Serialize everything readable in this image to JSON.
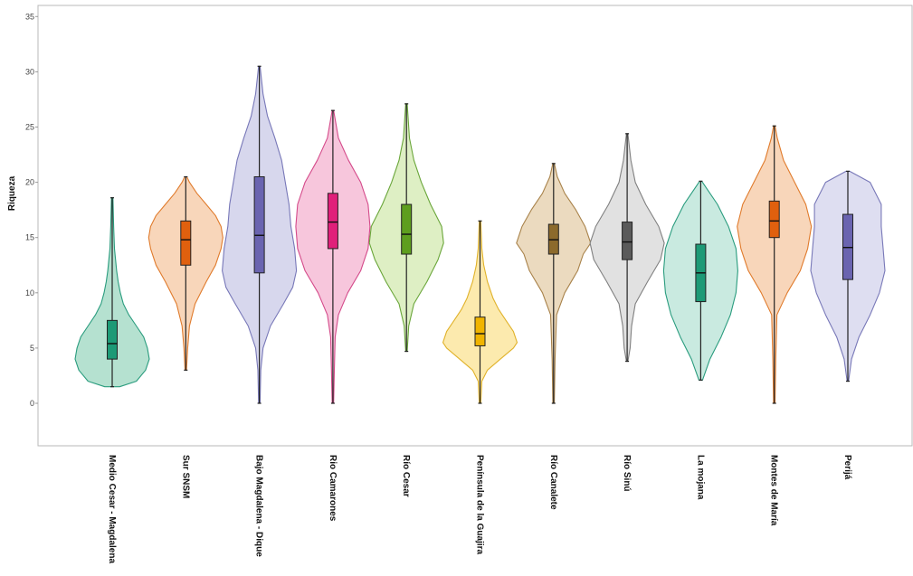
{
  "chart_data": {
    "type": "violin",
    "ylabel": "Riqueza",
    "xlabel": "",
    "ylim": [
      -4,
      36
    ],
    "yticks": [
      0,
      5,
      10,
      15,
      20,
      25,
      30,
      35
    ],
    "grid": false,
    "categories": [
      "Medio Cesar - Magdalena",
      "Sur SNSM",
      "Bajo Magdalena - Dique",
      "Rio Camarones",
      "Río Cesar",
      "Península de la Guajira",
      "Río Canalete",
      "Río Sinú",
      "La mojana",
      "Montes de María",
      "Perijá"
    ],
    "series": [
      {
        "min": 1.5,
        "q1": 4.0,
        "median": 5.4,
        "q3": 7.5,
        "max": 18.6,
        "density": [
          [
            1.5,
            0.2
          ],
          [
            2,
            0.65
          ],
          [
            3,
            0.9
          ],
          [
            4,
            1.0
          ],
          [
            5,
            0.95
          ],
          [
            6,
            0.85
          ],
          [
            7,
            0.65
          ],
          [
            8,
            0.45
          ],
          [
            9,
            0.3
          ],
          [
            10,
            0.22
          ],
          [
            11,
            0.16
          ],
          [
            12,
            0.12
          ],
          [
            13,
            0.09
          ],
          [
            14,
            0.06
          ],
          [
            16,
            0.04
          ],
          [
            18.6,
            0.02
          ]
        ],
        "fill": "#a8dcc8",
        "stroke": "#2a9c7e",
        "box": "#1d9a76"
      },
      {
        "min": 3.0,
        "q1": 12.5,
        "median": 14.8,
        "q3": 16.5,
        "max": 20.5,
        "density": [
          [
            3,
            0.02
          ],
          [
            5,
            0.05
          ],
          [
            7,
            0.1
          ],
          [
            9,
            0.25
          ],
          [
            11,
            0.55
          ],
          [
            12.5,
            0.8
          ],
          [
            14,
            0.95
          ],
          [
            15,
            1.0
          ],
          [
            16,
            0.95
          ],
          [
            17,
            0.8
          ],
          [
            18,
            0.55
          ],
          [
            19,
            0.3
          ],
          [
            20,
            0.1
          ],
          [
            20.5,
            0.03
          ]
        ],
        "fill": "#f7cfae",
        "stroke": "#e07b2c",
        "box": "#e0600e"
      },
      {
        "min": 0.0,
        "q1": 11.8,
        "median": 15.2,
        "q3": 20.5,
        "max": 30.5,
        "density": [
          [
            0,
            0.02
          ],
          [
            3,
            0.04
          ],
          [
            5,
            0.1
          ],
          [
            7,
            0.3
          ],
          [
            9,
            0.65
          ],
          [
            10.5,
            0.9
          ],
          [
            12,
            1.0
          ],
          [
            14,
            0.95
          ],
          [
            16,
            0.85
          ],
          [
            18,
            0.8
          ],
          [
            20,
            0.7
          ],
          [
            22,
            0.6
          ],
          [
            24,
            0.42
          ],
          [
            26,
            0.22
          ],
          [
            28,
            0.1
          ],
          [
            30.5,
            0.02
          ]
        ],
        "fill": "#d0d0ea",
        "stroke": "#7878b8",
        "box": "#6a64b0"
      },
      {
        "min": 0.0,
        "q1": 14.0,
        "median": 16.4,
        "q3": 19.0,
        "max": 26.5,
        "density": [
          [
            0,
            0.02
          ],
          [
            3,
            0.04
          ],
          [
            6,
            0.06
          ],
          [
            8,
            0.15
          ],
          [
            10,
            0.4
          ],
          [
            12,
            0.75
          ],
          [
            14,
            0.95
          ],
          [
            16,
            1.0
          ],
          [
            18,
            0.95
          ],
          [
            20,
            0.75
          ],
          [
            22,
            0.42
          ],
          [
            24,
            0.15
          ],
          [
            26.5,
            0.02
          ]
        ],
        "fill": "#f6bcd6",
        "stroke": "#d44a8a",
        "box": "#e0207a"
      },
      {
        "min": 4.7,
        "q1": 13.5,
        "median": 15.3,
        "q3": 18.0,
        "max": 27.1,
        "density": [
          [
            4.7,
            0.02
          ],
          [
            7,
            0.06
          ],
          [
            9,
            0.2
          ],
          [
            11,
            0.55
          ],
          [
            13,
            0.85
          ],
          [
            14.5,
            1.0
          ],
          [
            16,
            0.95
          ],
          [
            18,
            0.65
          ],
          [
            20,
            0.4
          ],
          [
            22,
            0.2
          ],
          [
            24,
            0.08
          ],
          [
            27.1,
            0.02
          ]
        ],
        "fill": "#d8ecba",
        "stroke": "#6aa63a",
        "box": "#5e9e1e"
      },
      {
        "min": 0.0,
        "q1": 5.2,
        "median": 6.3,
        "q3": 7.8,
        "max": 16.5,
        "density": [
          [
            0,
            0.02
          ],
          [
            2,
            0.05
          ],
          [
            3,
            0.2
          ],
          [
            4,
            0.55
          ],
          [
            5,
            0.9
          ],
          [
            5.5,
            1.0
          ],
          [
            6.5,
            0.9
          ],
          [
            7.5,
            0.7
          ],
          [
            8.5,
            0.5
          ],
          [
            9.5,
            0.35
          ],
          [
            11,
            0.2
          ],
          [
            12.5,
            0.1
          ],
          [
            14,
            0.05
          ],
          [
            16.5,
            0.02
          ]
        ],
        "fill": "#fbe6a0",
        "stroke": "#e0b22a",
        "box": "#f0b400"
      },
      {
        "min": 0.0,
        "q1": 13.5,
        "median": 14.8,
        "q3": 16.2,
        "max": 21.7,
        "density": [
          [
            0,
            0.02
          ],
          [
            4,
            0.04
          ],
          [
            8,
            0.08
          ],
          [
            10,
            0.3
          ],
          [
            12,
            0.65
          ],
          [
            13.5,
            0.8
          ],
          [
            14.5,
            1.0
          ],
          [
            16,
            0.85
          ],
          [
            17.5,
            0.6
          ],
          [
            19,
            0.3
          ],
          [
            20.5,
            0.1
          ],
          [
            21.7,
            0.02
          ]
        ],
        "fill": "#e8d4b4",
        "stroke": "#a8824a",
        "box": "#8c6a2c"
      },
      {
        "min": 3.8,
        "q1": 13.0,
        "median": 14.6,
        "q3": 16.4,
        "max": 24.4,
        "density": [
          [
            3.8,
            0.02
          ],
          [
            5,
            0.08
          ],
          [
            7,
            0.12
          ],
          [
            9,
            0.22
          ],
          [
            11,
            0.55
          ],
          [
            13,
            0.9
          ],
          [
            14.5,
            1.0
          ],
          [
            16,
            0.85
          ],
          [
            18,
            0.5
          ],
          [
            20,
            0.22
          ],
          [
            22,
            0.1
          ],
          [
            24.4,
            0.02
          ]
        ],
        "fill": "#dcdcdc",
        "stroke": "#808080",
        "box": "#5a5a5a"
      },
      {
        "min": 2.1,
        "q1": 9.2,
        "median": 11.8,
        "q3": 14.4,
        "max": 20.1,
        "density": [
          [
            2.1,
            0.05
          ],
          [
            4,
            0.25
          ],
          [
            6,
            0.55
          ],
          [
            8,
            0.8
          ],
          [
            10,
            0.95
          ],
          [
            12,
            1.0
          ],
          [
            14,
            0.95
          ],
          [
            16,
            0.75
          ],
          [
            18,
            0.45
          ],
          [
            19.5,
            0.15
          ],
          [
            20.1,
            0.03
          ]
        ],
        "fill": "#bfe6da",
        "stroke": "#2a9c7e",
        "box": "#1d9a76"
      },
      {
        "min": 0.0,
        "q1": 15.0,
        "median": 16.5,
        "q3": 18.3,
        "max": 25.1,
        "density": [
          [
            0,
            0.02
          ],
          [
            4,
            0.04
          ],
          [
            8,
            0.07
          ],
          [
            10,
            0.35
          ],
          [
            12,
            0.7
          ],
          [
            14,
            0.9
          ],
          [
            16,
            1.0
          ],
          [
            18,
            0.85
          ],
          [
            20,
            0.55
          ],
          [
            22,
            0.25
          ],
          [
            24,
            0.08
          ],
          [
            25.1,
            0.02
          ]
        ],
        "fill": "#f7cfae",
        "stroke": "#e07b2c",
        "box": "#e0600e"
      },
      {
        "min": 2.0,
        "q1": 11.2,
        "median": 14.1,
        "q3": 17.1,
        "max": 21.0,
        "density": [
          [
            2,
            0.02
          ],
          [
            4,
            0.1
          ],
          [
            6,
            0.3
          ],
          [
            8,
            0.6
          ],
          [
            10,
            0.85
          ],
          [
            12,
            1.0
          ],
          [
            14,
            0.95
          ],
          [
            16,
            0.9
          ],
          [
            18,
            0.9
          ],
          [
            20,
            0.6
          ],
          [
            21,
            0.05
          ]
        ],
        "fill": "#d8d8ee",
        "stroke": "#7878b8",
        "box": "#6a64b0"
      }
    ]
  }
}
